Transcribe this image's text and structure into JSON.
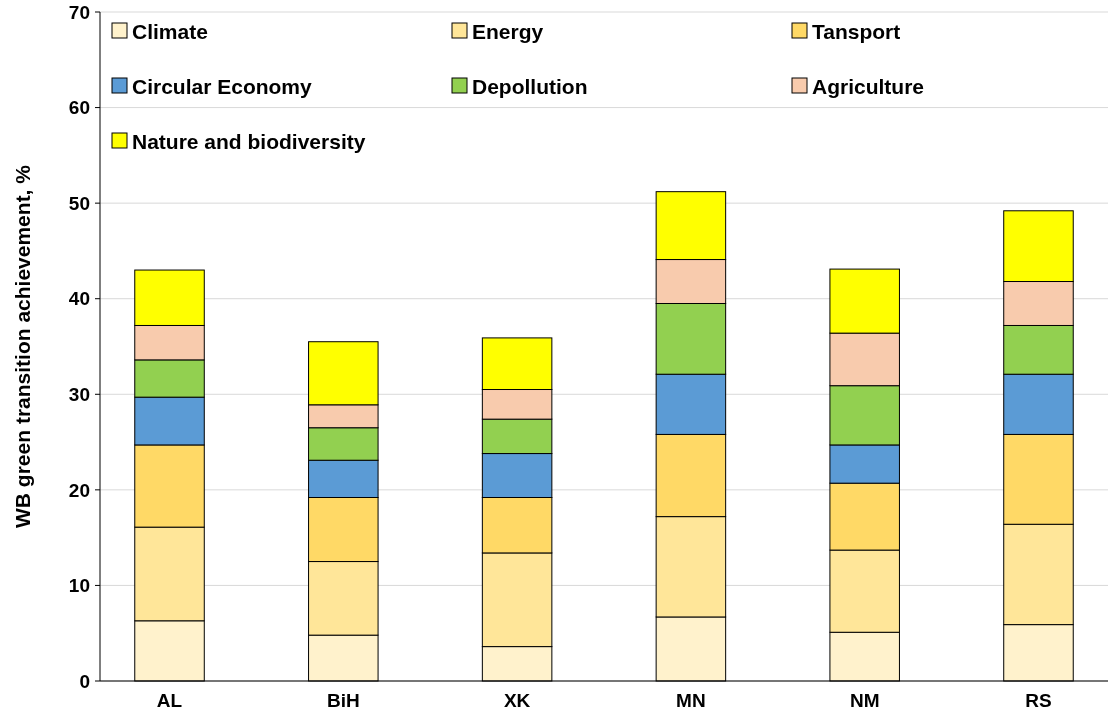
{
  "chart_data": {
    "type": "bar",
    "stacked": true,
    "ylabel": "WB green transition achievement, %",
    "categories": [
      "AL",
      "BiH",
      "XK",
      "MN",
      "NM",
      "RS"
    ],
    "series": [
      {
        "name": "Climate",
        "color": "#fff2cc",
        "values": [
          6.3,
          4.8,
          3.6,
          6.7,
          5.1,
          5.9
        ]
      },
      {
        "name": "Energy",
        "color": "#ffe699",
        "values": [
          9.8,
          7.7,
          9.8,
          10.5,
          8.6,
          10.5
        ]
      },
      {
        "name": "Tansport",
        "color": "#ffd966",
        "values": [
          8.6,
          6.7,
          5.8,
          8.6,
          7.0,
          9.4
        ]
      },
      {
        "name": "Circular Economy",
        "color": "#5b9bd5",
        "values": [
          5.0,
          3.9,
          4.6,
          6.3,
          4.0,
          6.3
        ]
      },
      {
        "name": "Depollution",
        "color": "#92d050",
        "values": [
          3.9,
          3.4,
          3.6,
          7.4,
          6.2,
          5.1
        ]
      },
      {
        "name": "Agriculture",
        "color": "#f8cbad",
        "values": [
          3.6,
          2.4,
          3.1,
          4.6,
          5.5,
          4.6
        ]
      },
      {
        "name": "Nature and biodiversity",
        "color": "#ffff00",
        "values": [
          5.8,
          6.6,
          5.4,
          7.1,
          6.7,
          7.4
        ]
      }
    ],
    "ylim": [
      0,
      70
    ],
    "yticks": [
      0,
      10,
      20,
      30,
      40,
      50,
      60,
      70
    ],
    "grid": "y",
    "legend": "top"
  }
}
